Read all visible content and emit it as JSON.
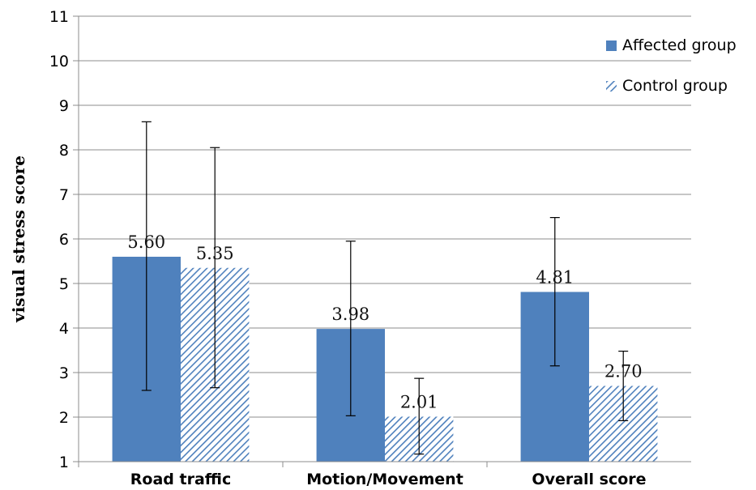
{
  "chart_data": {
    "type": "bar",
    "title": "",
    "xlabel": "",
    "ylabel": "visual stress score",
    "ylim": [
      1,
      11
    ],
    "yticks": [
      1,
      2,
      3,
      4,
      5,
      6,
      7,
      8,
      9,
      10,
      11
    ],
    "grid": true,
    "legend_position": "top-right",
    "categories": [
      "Road traffic",
      "Motion/Movement",
      "Overall score"
    ],
    "series": [
      {
        "name": "Affected group",
        "pattern": "solid",
        "color": "#4F81BD",
        "values": [
          5.6,
          3.98,
          4.81
        ],
        "labels": [
          "5.60",
          "3.98",
          "4.81"
        ],
        "error_low": [
          2.6,
          2.03,
          3.15
        ],
        "error_high": [
          8.63,
          5.95,
          6.48
        ]
      },
      {
        "name": "Control group",
        "pattern": "diagonal-hatch",
        "color": "#4F81BD",
        "values": [
          5.35,
          2.01,
          2.7
        ],
        "labels": [
          "5.35",
          "2.01",
          "2.70"
        ],
        "error_low": [
          2.66,
          1.17,
          1.92
        ],
        "error_high": [
          8.05,
          2.87,
          3.48
        ]
      }
    ]
  }
}
